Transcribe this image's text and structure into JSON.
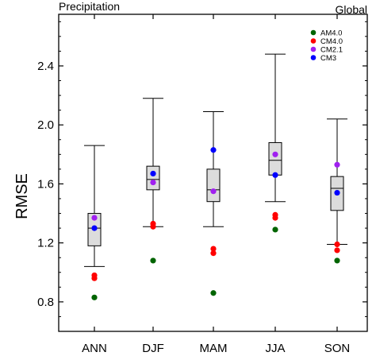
{
  "chart_data": {
    "type": "box",
    "title_left": "Precipitation",
    "title_right": "Global",
    "xlabel": "",
    "ylabel": "RMSE",
    "categories": [
      "ANN",
      "DJF",
      "MAM",
      "JJA",
      "SON"
    ],
    "ylim": [
      0.6,
      2.75
    ],
    "yticks": [
      0.8,
      1.2,
      1.6,
      2.0,
      2.4
    ],
    "ytick_labels": [
      "0.8",
      "1.2",
      "1.6",
      "2.0",
      "2.4"
    ],
    "grid": false,
    "legend_position": "top-right",
    "boxes": [
      {
        "category": "ANN",
        "whisker_low": 1.04,
        "q1": 1.18,
        "median": 1.3,
        "q3": 1.4,
        "whisker_high": 1.86
      },
      {
        "category": "DJF",
        "whisker_low": 1.31,
        "q1": 1.56,
        "median": 1.63,
        "q3": 1.72,
        "whisker_high": 2.18
      },
      {
        "category": "MAM",
        "whisker_low": 1.31,
        "q1": 1.48,
        "median": 1.56,
        "q3": 1.7,
        "whisker_high": 2.09
      },
      {
        "category": "JJA",
        "whisker_low": 1.48,
        "q1": 1.66,
        "median": 1.76,
        "q3": 1.88,
        "whisker_high": 2.48
      },
      {
        "category": "SON",
        "whisker_low": 1.19,
        "q1": 1.42,
        "median": 1.57,
        "q3": 1.65,
        "whisker_high": 2.04
      }
    ],
    "series": [
      {
        "name": "AM4.0",
        "color": "#006400",
        "marker": "circle",
        "values": [
          [
            0.83
          ],
          [
            1.08
          ],
          [
            0.86
          ],
          [
            1.29
          ],
          [
            1.08
          ]
        ]
      },
      {
        "name": "CM4.0",
        "color": "#ff0000",
        "marker": "circle",
        "values": [
          [
            0.96,
            0.98
          ],
          [
            1.31,
            1.33
          ],
          [
            1.13,
            1.16
          ],
          [
            1.37,
            1.39
          ],
          [
            1.15,
            1.19
          ]
        ]
      },
      {
        "name": "CM2.1",
        "color": "#a020f0",
        "marker": "circle",
        "values": [
          [
            1.37
          ],
          [
            1.61
          ],
          [
            1.55
          ],
          [
            1.8
          ],
          [
            1.73
          ]
        ]
      },
      {
        "name": "CM3",
        "color": "#0000ff",
        "marker": "circle",
        "values": [
          [
            1.3
          ],
          [
            1.67
          ],
          [
            1.83
          ],
          [
            1.66
          ],
          [
            1.54
          ]
        ]
      }
    ],
    "colors": {
      "box_fill": "#dcdcdc",
      "box_stroke": "#000000",
      "axis": "#000000"
    }
  }
}
